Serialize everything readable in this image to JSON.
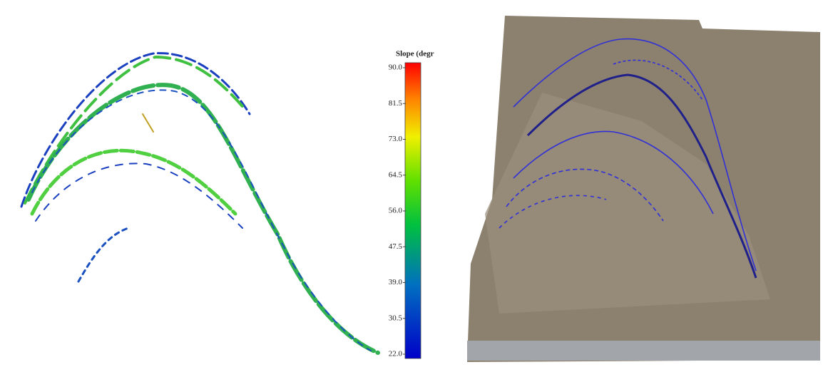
{
  "colorbar": {
    "title": "Slope (degr",
    "range": [
      22,
      90
    ],
    "ticks": [
      {
        "value": 22,
        "label": "22.0"
      },
      {
        "value": 30.5,
        "label": "30.5"
      },
      {
        "value": 39,
        "label": "39.0"
      },
      {
        "value": 47.5,
        "label": "47.5"
      },
      {
        "value": 56,
        "label": "56.0"
      },
      {
        "value": 64.5,
        "label": "64.5"
      },
      {
        "value": 73,
        "label": "73.0"
      },
      {
        "value": 81.5,
        "label": "81.5"
      },
      {
        "value": 90,
        "label": "90.0"
      }
    ]
  }
}
